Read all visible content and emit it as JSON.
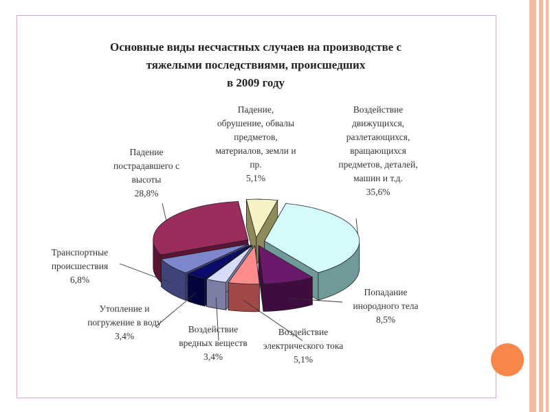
{
  "chart_data": {
    "type": "pie",
    "title_lines": [
      "Основные виды несчастных случаев на производстве с",
      "тяжелыми последствиями, происшедших",
      "в  2009 году"
    ],
    "slices": [
      {
        "label_lines": [
          "Падение,",
          "обрушение, обвалы",
          "предметов,",
          "материалов, земли и",
          "пр."
        ],
        "value_text": "5,1%",
        "value": 5.1,
        "color": "#f7f2c4",
        "side_color": "#8f8a5a"
      },
      {
        "label_lines": [
          "Воздействие",
          "движущихся,",
          "разлетающихся,",
          "вращающихся",
          "предметов, деталей,",
          "машин  и т.д."
        ],
        "value_text": "35,6%",
        "value": 35.6,
        "color": "#d3fbfb",
        "side_color": "#6f9a9a"
      },
      {
        "label_lines": [
          "Попадание",
          "инородного тела"
        ],
        "value_text": "8,5%",
        "value": 8.5,
        "color": "#6b1a6b",
        "side_color": "#3f0c3f"
      },
      {
        "label_lines": [
          "Воздействие",
          "электрического тока"
        ],
        "value_text": "5,1%",
        "value": 5.1,
        "color": "#ff8c8c",
        "side_color": "#a14848"
      },
      {
        "label_lines": [
          "Воздействие",
          "вредных веществ"
        ],
        "value_text": "3,4%",
        "value": 3.4,
        "color": "#d6dcf5",
        "side_color": "#7b7fa6"
      },
      {
        "label_lines": [
          "Утопление и",
          "погружение в воду"
        ],
        "value_text": "3,4%",
        "value": 3.4,
        "color": "#0b0b6e",
        "side_color": "#05053e"
      },
      {
        "label_lines": [
          "Транспортные",
          "происшествия"
        ],
        "value_text": "6,8%",
        "value": 6.8,
        "color": "#7e86cc",
        "side_color": "#3e447a"
      },
      {
        "label_lines": [
          "Падение",
          "пострадавшего с",
          "высоты"
        ],
        "value_text": "28,8%",
        "value": 28.8,
        "color": "#9b2d5e",
        "side_color": "#5c1434"
      }
    ],
    "legend": "none"
  }
}
